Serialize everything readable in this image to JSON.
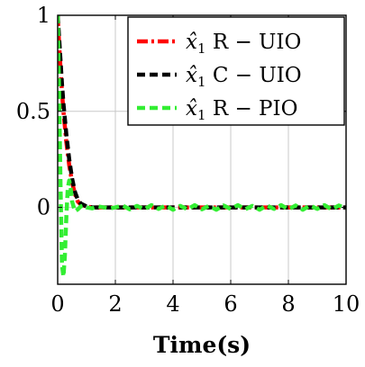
{
  "chart_data": {
    "type": "line",
    "title": "",
    "xlabel": "Time(s)",
    "ylabel": "",
    "xlim": [
      0,
      10
    ],
    "ylim": [
      -0.4,
      1
    ],
    "x_ticks": [
      "0",
      "2",
      "4",
      "6",
      "8",
      "10"
    ],
    "y_ticks": [
      "0",
      "0.5",
      "1"
    ],
    "x_tick_values": [
      0,
      2,
      4,
      6,
      8,
      10
    ],
    "y_tick_values": [
      0,
      0.5,
      1
    ],
    "grid": true,
    "legend_position": "top-right",
    "series": [
      {
        "name": "x̂₁ R − UIO",
        "legend_var": "x̂",
        "legend_sub": "1",
        "legend_rest": " R − UIO",
        "color": "#ff0000",
        "style": "dash-dot",
        "x": [
          0,
          0.05,
          0.1,
          0.15,
          0.2,
          0.3,
          0.4,
          0.5,
          0.6,
          0.7,
          0.8,
          1.0,
          1.2,
          1.5,
          2.0,
          2.5,
          3.0,
          3.5,
          4.0,
          4.5,
          5.0,
          5.5,
          6.0,
          6.5,
          7.0,
          7.5,
          8.0,
          8.5,
          9.0,
          9.5,
          10.0
        ],
        "y": [
          1.0,
          0.85,
          0.72,
          0.6,
          0.5,
          0.34,
          0.22,
          0.13,
          0.07,
          0.03,
          0.015,
          0.005,
          0.0,
          0.0,
          0.0,
          0.0,
          0.0,
          0.0,
          0.0,
          0.0,
          0.0,
          0.0,
          0.0,
          0.0,
          0.0,
          0.0,
          0.0,
          0.0,
          0.0,
          0.0,
          0.0
        ]
      },
      {
        "name": "x̂₁ C − UIO",
        "legend_var": "x̂",
        "legend_sub": "1",
        "legend_rest": " C − UIO",
        "color": "#000000",
        "style": "dashed",
        "x": [
          0,
          0.05,
          0.1,
          0.15,
          0.2,
          0.3,
          0.4,
          0.5,
          0.6,
          0.7,
          0.8,
          1.0,
          1.2,
          1.5,
          2.0,
          2.5,
          3.0,
          3.5,
          4.0,
          4.5,
          5.0,
          5.5,
          6.0,
          6.5,
          7.0,
          7.5,
          8.0,
          8.5,
          9.0,
          9.5,
          10.0
        ],
        "y": [
          1.0,
          0.88,
          0.76,
          0.64,
          0.54,
          0.38,
          0.25,
          0.15,
          0.08,
          0.04,
          0.02,
          0.005,
          0.0,
          0.0,
          0.0,
          0.0,
          0.0,
          0.0,
          0.0,
          0.0,
          0.0,
          0.0,
          0.0,
          0.0,
          0.0,
          0.0,
          0.0,
          0.0,
          0.0,
          0.0,
          0.0
        ]
      },
      {
        "name": "x̂₁ R − PIO",
        "legend_var": "x̂",
        "legend_sub": "1",
        "legend_rest": " R − PIO",
        "color": "#33ee33",
        "style": "dashed",
        "x": [
          0,
          0.05,
          0.1,
          0.15,
          0.2,
          0.25,
          0.3,
          0.35,
          0.4,
          0.45,
          0.5,
          0.6,
          0.7,
          0.8,
          0.9,
          1.0,
          1.2,
          1.4,
          1.6,
          1.8,
          2.0,
          2.25,
          2.5,
          2.75,
          3.0,
          3.25,
          3.5,
          3.75,
          4.0,
          4.25,
          4.5,
          4.75,
          5.0,
          5.25,
          5.5,
          5.75,
          6.0,
          6.25,
          6.5,
          6.75,
          7.0,
          7.25,
          7.5,
          7.75,
          8.0,
          8.25,
          8.5,
          8.75,
          9.0,
          9.25,
          9.5,
          9.75,
          10.0
        ],
        "y": [
          1.0,
          0.6,
          0.1,
          -0.3,
          -0.36,
          -0.25,
          -0.05,
          0.1,
          0.14,
          0.1,
          0.03,
          -0.02,
          -0.01,
          0.005,
          0.01,
          0.0,
          -0.005,
          0.005,
          0.0,
          -0.005,
          0.0,
          0.01,
          -0.01,
          0.008,
          -0.01,
          0.012,
          -0.008,
          0.01,
          -0.012,
          0.008,
          -0.01,
          0.012,
          -0.01,
          0.008,
          -0.012,
          0.01,
          -0.008,
          0.012,
          -0.01,
          0.008,
          -0.012,
          0.01,
          -0.008,
          0.012,
          -0.01,
          0.01,
          -0.012,
          0.01,
          -0.008,
          0.012,
          -0.01,
          0.01,
          -0.005
        ]
      }
    ]
  }
}
